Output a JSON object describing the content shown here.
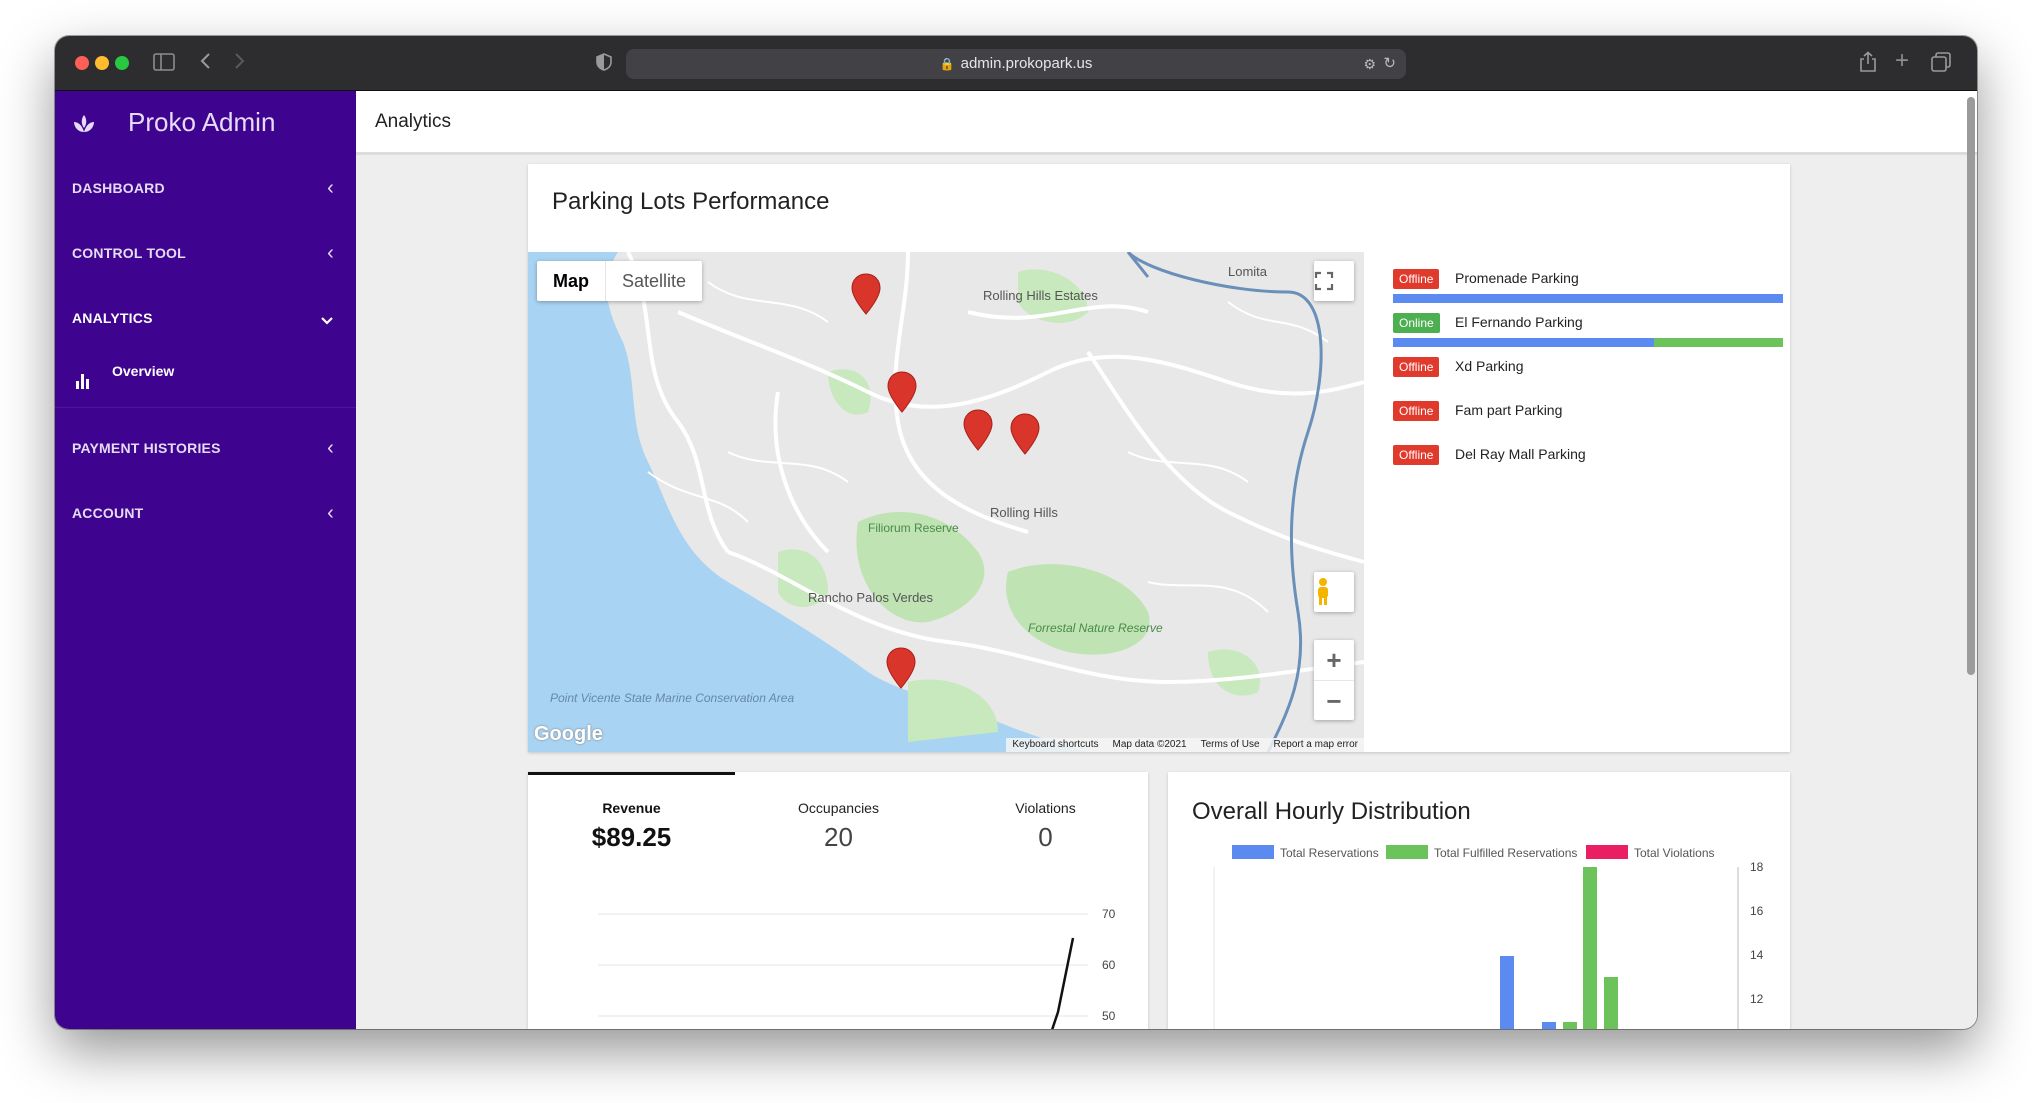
{
  "browser": {
    "url": "admin.prokopark.us"
  },
  "sidebar": {
    "brand": "Proko Admin",
    "items": [
      {
        "label": "DASHBOARD"
      },
      {
        "label": "CONTROL TOOL"
      },
      {
        "label": "ANALYTICS"
      },
      {
        "label": "PAYMENT HISTORIES"
      },
      {
        "label": "ACCOUNT"
      }
    ],
    "sub_item": {
      "label": "Overview"
    }
  },
  "header": {
    "title": "Analytics"
  },
  "performance": {
    "title": "Parking Lots Performance",
    "map": {
      "type_map": "Map",
      "type_satellite": "Satellite",
      "footer": [
        "Keyboard shortcuts",
        "Map data ©2021",
        "Terms of Use",
        "Report a map error"
      ],
      "logo": "Google",
      "places": [
        "Lomita",
        "Rolling Hills Estates",
        "Rolling Hills",
        "Filiorum Reserve",
        "Rancho Palos Verdes",
        "Forrestal Nature Reserve",
        "Point Vicente State Marine Conservation Area"
      ]
    },
    "lots": [
      {
        "status": "Offline",
        "name": "Promenade Parking",
        "fulfilled_fraction": 0.0,
        "show_bar": true
      },
      {
        "status": "Online",
        "name": "El Fernando Parking",
        "fulfilled_fraction": 0.33,
        "show_bar": true
      },
      {
        "status": "Offline",
        "name": "Xd Parking"
      },
      {
        "status": "Offline",
        "name": "Fam part Parking"
      },
      {
        "status": "Offline",
        "name": "Del Ray Mall Parking"
      }
    ],
    "colors": {
      "offline": "#e03a2d",
      "online": "#4caf50",
      "reservations": "#5b8af0",
      "fulfilled": "#6cc25b"
    }
  },
  "stats": {
    "revenue_label": "Revenue",
    "revenue_value": "$89.25",
    "occupancies_label": "Occupancies",
    "occupancies_value": "20",
    "violations_label": "Violations",
    "violations_value": "0",
    "axis_ticks": [
      "70",
      "60",
      "50"
    ]
  },
  "hourly": {
    "title": "Overall Hourly Distribution",
    "legend": [
      "Total Reservations",
      "Total Fulfilled Reservations",
      "Total Violations"
    ],
    "colors": [
      "#5b8af0",
      "#6cc25b",
      "#e91e63"
    ],
    "axis_ticks": [
      "18",
      "16",
      "14",
      "12"
    ]
  },
  "chart_data": [
    {
      "type": "bar",
      "title": "Overall Hourly Distribution",
      "series": [
        {
          "name": "Total Reservations",
          "values": [
            14,
            11
          ]
        },
        {
          "name": "Total Fulfilled Reservations",
          "values": [
            11,
            18,
            13
          ]
        },
        {
          "name": "Total Violations",
          "values": []
        }
      ],
      "ylim": [
        11,
        18
      ],
      "legend": "top"
    }
  ]
}
